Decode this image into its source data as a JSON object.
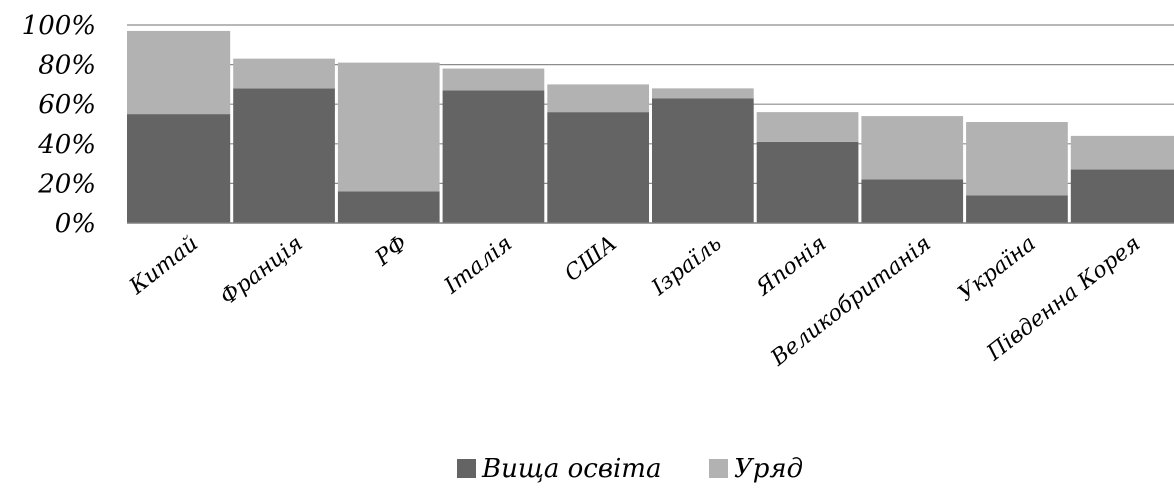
{
  "chart_data": {
    "type": "bar",
    "stacked": true,
    "categories": [
      "Китай",
      "Франція",
      "РФ",
      "Італія",
      "США",
      "Ізраїль",
      "Японія",
      "Великобританія",
      "Україна",
      "Південна Корея"
    ],
    "series": [
      {
        "name": "Вища освіта",
        "color": "#646464",
        "values": [
          55,
          68,
          16,
          67,
          56,
          63,
          41,
          22,
          14,
          27
        ]
      },
      {
        "name": "Уряд",
        "color": "#b2b2b2",
        "values": [
          42,
          15,
          65,
          11,
          14,
          5,
          15,
          32,
          37,
          17
        ]
      }
    ],
    "yticks": [
      "0%",
      "20%",
      "40%",
      "60%",
      "80%",
      "100%"
    ],
    "ylim": [
      0,
      100
    ],
    "grid": true,
    "legend_position": "bottom"
  }
}
